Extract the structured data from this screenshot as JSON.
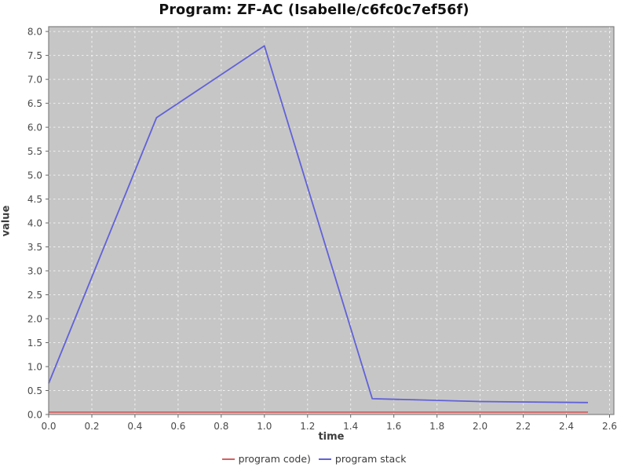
{
  "window": {
    "background_color": "#ffffff"
  },
  "chart_data": {
    "type": "line",
    "title": "Program: ZF-AC (Isabelle/c6fc0c7ef56f)",
    "xlabel": "time",
    "ylabel": "value",
    "xlim": [
      0,
      2.62
    ],
    "ylim": [
      0,
      8.1
    ],
    "x_ticks": [
      0.0,
      0.2,
      0.4,
      0.6,
      0.8,
      1.0,
      1.2,
      1.4,
      1.6,
      1.8,
      2.0,
      2.2,
      2.4,
      2.6
    ],
    "y_ticks": [
      0.0,
      0.5,
      1.0,
      1.5,
      2.0,
      2.5,
      3.0,
      3.5,
      4.0,
      4.5,
      5.0,
      5.5,
      6.0,
      6.5,
      7.0,
      7.5,
      8.0
    ],
    "grid": true,
    "grid_style": "dashed-white",
    "legend_position": "bottom-center",
    "plot_background_color": "#c6c6c6",
    "grid_color": "#ffffff",
    "border_color": "#808080",
    "tick_color": "#666666",
    "tick_label_color": "#4a4a4a",
    "series": [
      {
        "name": "program code)",
        "color": "#d65f5f",
        "x": [
          0.0,
          2.5
        ],
        "y": [
          0.05,
          0.05
        ]
      },
      {
        "name": "program stack",
        "color": "#6161d8",
        "x": [
          0.0,
          0.5,
          1.0,
          1.5,
          2.0,
          2.5
        ],
        "y": [
          0.65,
          6.2,
          7.7,
          0.33,
          0.27,
          0.25
        ]
      }
    ]
  }
}
